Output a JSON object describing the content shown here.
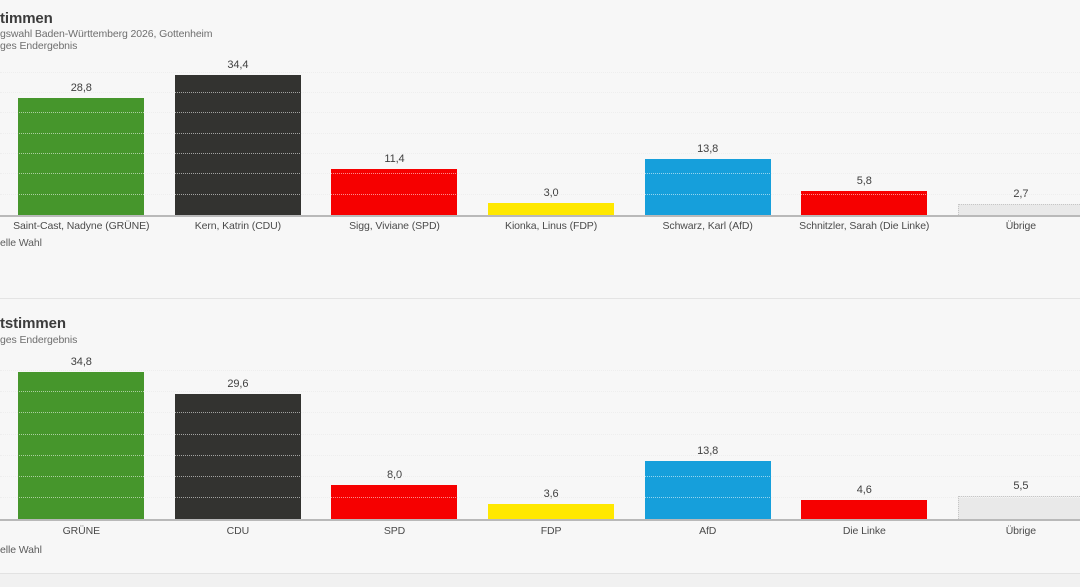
{
  "page": {
    "background": "#f7f7f7",
    "bottom_band_color": "#f1f1f1"
  },
  "colors": {
    "axis_line": "#b9b9b9",
    "gridline": "#d9d9d9",
    "title_text": "#3c3c3c",
    "subtitle_text": "#6e6e6e",
    "category_text": "#4b4b4b",
    "value_text": "#3f3f3f"
  },
  "chart_data": [
    {
      "type": "bar",
      "title": "timmen",
      "subtitle_lines": [
        "gswahl Baden-Württemberg 2026, Gottenheim",
        "ges Endergebnis"
      ],
      "footnote": "elle Wahl",
      "categories": [
        "Saint-Cast, Nadyne (GRÜNE)",
        "Kern, Katrin (CDU)",
        "Sigg, Viviane (SPD)",
        "Kionka, Linus (FDP)",
        "Schwarz, Karl (AfD)",
        "Schnitzler, Sarah (Die Linke)",
        "Übrige"
      ],
      "values": [
        28.8,
        34.4,
        11.4,
        3.0,
        13.8,
        5.8,
        2.7
      ],
      "value_labels": [
        "28,8",
        "34,4",
        "11,4",
        "3,0",
        "13,8",
        "5,8",
        "2,7"
      ],
      "bar_colors": [
        "#46962c",
        "#333330",
        "#f60000",
        "#ffe800",
        "#169fdb",
        "#f60000",
        "#e9e9e9"
      ],
      "bar_ids": [
        "gruene",
        "cdu",
        "spd",
        "fdp",
        "afd",
        "die-linke",
        "uebrige"
      ],
      "bar_muted": [
        false,
        false,
        false,
        false,
        false,
        false,
        true
      ],
      "ylabel": "",
      "xlabel": "",
      "ylim": [
        0,
        38
      ],
      "grid_step": 5,
      "grid": "dotted-horizontal",
      "legend": "none"
    },
    {
      "type": "bar",
      "title": "tstimmen",
      "subtitle_lines": [
        "ges Endergebnis"
      ],
      "footnote": "elle Wahl",
      "categories": [
        "GRÜNE",
        "CDU",
        "SPD",
        "FDP",
        "AfD",
        "Die Linke",
        "Übrige"
      ],
      "values": [
        34.8,
        29.6,
        8.0,
        3.6,
        13.8,
        4.6,
        5.5
      ],
      "value_labels": [
        "34,8",
        "29,6",
        "8,0",
        "3,6",
        "13,8",
        "4,6",
        "5,5"
      ],
      "bar_colors": [
        "#46962c",
        "#333330",
        "#f60000",
        "#ffe800",
        "#169fdb",
        "#f60000",
        "#e9e9e9"
      ],
      "bar_ids": [
        "gruene",
        "cdu",
        "spd",
        "fdp",
        "afd",
        "die-linke",
        "uebrige"
      ],
      "bar_muted": [
        false,
        false,
        false,
        false,
        false,
        false,
        true
      ],
      "ylabel": "",
      "xlabel": "",
      "ylim": [
        0,
        39
      ],
      "grid_step": 5,
      "grid": "dotted-horizontal",
      "legend": "none"
    }
  ]
}
